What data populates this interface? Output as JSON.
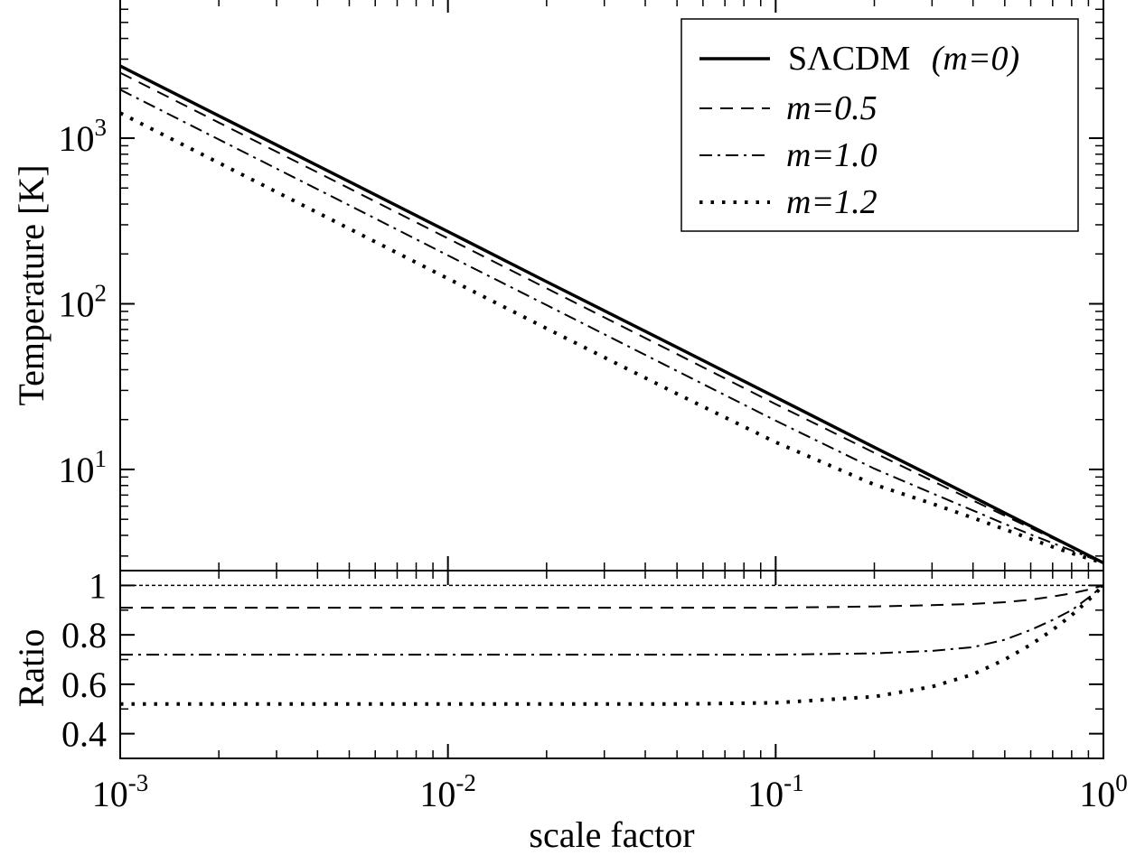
{
  "chart_data": [
    {
      "panel": "top",
      "type": "line",
      "ylabel": "Temperature [K]",
      "xscale": "log",
      "yscale": "log",
      "xlim": [
        0.001,
        1
      ],
      "ylim": [
        2.45,
        7000
      ],
      "grid": false,
      "legend_position": "top-right",
      "x_ticks": [
        "10^-3",
        "10^-2",
        "10^-1",
        "10^0"
      ],
      "y_ticks": [
        "10^1",
        "10^2",
        "10^3"
      ],
      "x": [
        0.001,
        0.002,
        0.005,
        0.01,
        0.02,
        0.05,
        0.1,
        0.2,
        0.3,
        0.4,
        0.5,
        0.6,
        0.7,
        0.8,
        0.9,
        1.0
      ],
      "series": [
        {
          "name": "SΛCDM",
          "name_suffix": "(m=0)",
          "style": "solid",
          "values": [
            2728,
            1364,
            546,
            273,
            136,
            54.6,
            27.3,
            13.6,
            9.09,
            6.82,
            5.46,
            4.55,
            3.9,
            3.41,
            3.03,
            2.73
          ]
        },
        {
          "name": "m=0.5",
          "style": "dashed",
          "values": [
            2483,
            1241,
            497,
            248,
            124,
            49.7,
            24.8,
            12.6,
            8.54,
            6.49,
            5.26,
            4.43,
            3.84,
            3.39,
            3.03,
            2.73
          ]
        },
        {
          "name": "m=1.0",
          "style": "dashdot",
          "values": [
            1964,
            982,
            393,
            196,
            98.2,
            39.3,
            19.7,
            10.1,
            7.18,
            5.65,
            4.69,
            4.05,
            3.59,
            3.24,
            2.96,
            2.73
          ]
        },
        {
          "name": "m=1.2",
          "style": "dotted",
          "values": [
            1419,
            709,
            284,
            142,
            71.0,
            28.6,
            14.6,
            8.1,
            6.22,
            5.1,
            4.35,
            3.8,
            3.41,
            3.12,
            2.9,
            2.73
          ]
        }
      ]
    },
    {
      "panel": "bottom",
      "type": "line",
      "ylabel": "Ratio",
      "xlabel": "scale factor",
      "xscale": "log",
      "xlim": [
        0.001,
        1
      ],
      "ylim": [
        0.3,
        1.06
      ],
      "grid": false,
      "y_ticks": [
        0.4,
        0.6,
        0.8,
        1
      ],
      "x": [
        0.001,
        0.002,
        0.005,
        0.01,
        0.02,
        0.05,
        0.1,
        0.2,
        0.3,
        0.4,
        0.5,
        0.6,
        0.7,
        0.8,
        0.9,
        1.0
      ],
      "series": [
        {
          "ref": "SΛCDM",
          "style": "solid-thin",
          "values": [
            1,
            1,
            1,
            1,
            1,
            1,
            1,
            1,
            1,
            1,
            1,
            1,
            1,
            1,
            1,
            1
          ]
        },
        {
          "ref": "m=0.5",
          "style": "dashed",
          "values": [
            0.91,
            0.91,
            0.91,
            0.91,
            0.91,
            0.91,
            0.91,
            0.915,
            0.92,
            0.925,
            0.932,
            0.942,
            0.955,
            0.968,
            0.983,
            1.0
          ]
        },
        {
          "ref": "m=1.0",
          "style": "dashdot",
          "values": [
            0.72,
            0.72,
            0.72,
            0.72,
            0.72,
            0.72,
            0.72,
            0.725,
            0.735,
            0.75,
            0.78,
            0.82,
            0.86,
            0.9,
            0.95,
            1.0
          ]
        },
        {
          "ref": "m=1.2",
          "style": "dotted",
          "values": [
            0.52,
            0.52,
            0.52,
            0.52,
            0.52,
            0.52,
            0.525,
            0.55,
            0.59,
            0.64,
            0.7,
            0.76,
            0.82,
            0.88,
            0.94,
            1.0
          ]
        }
      ]
    }
  ]
}
